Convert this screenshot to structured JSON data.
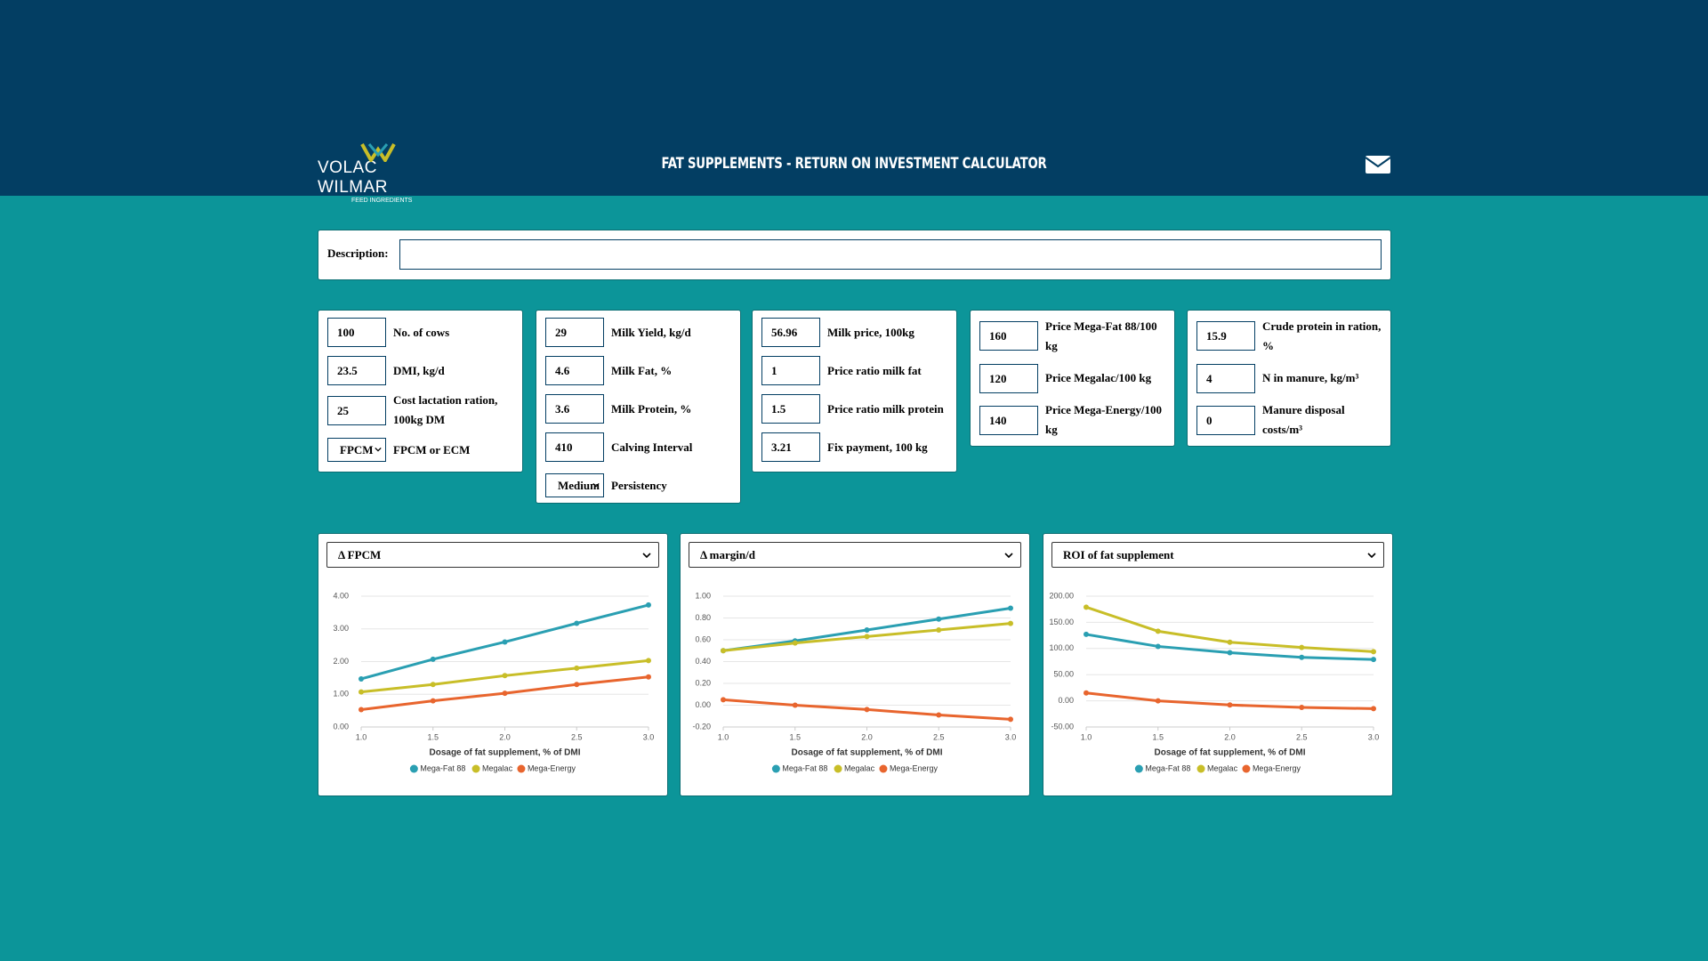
{
  "header": {
    "logo": "VOLAC WILMAR",
    "logo_sub": "FEED INGREDIENTS",
    "title": "FAT SUPPLEMENTS - RETURN ON INVESTMENT CALCULATOR"
  },
  "description": {
    "label": "Description:"
  },
  "panels": [
    {
      "fields": [
        {
          "value": "100",
          "label": "No. of cows"
        },
        {
          "value": "23.5",
          "label": "DMI, kg/d"
        },
        {
          "value": "25",
          "label": "Cost lactation ration, 100kg DM"
        },
        {
          "value": "FPCM",
          "label": "FPCM or ECM",
          "type": "select"
        }
      ]
    },
    {
      "fields": [
        {
          "value": "29",
          "label": "Milk Yield, kg/d"
        },
        {
          "value": "4.6",
          "label": "Milk Fat, %"
        },
        {
          "value": "3.6",
          "label": "Milk Protein, %"
        },
        {
          "value": "410",
          "label": "Calving Interval"
        },
        {
          "value": "Medium",
          "label": "Persistency",
          "type": "select"
        }
      ]
    },
    {
      "fields": [
        {
          "value": "56.96",
          "label": "Milk price, 100kg"
        },
        {
          "value": "1",
          "label": "Price ratio milk fat"
        },
        {
          "value": "1.5",
          "label": "Price ratio milk protein"
        },
        {
          "value": "3.21",
          "label": "Fix payment, 100 kg"
        }
      ]
    },
    {
      "fields": [
        {
          "value": "160",
          "label": "Price Mega-Fat 88/100 kg"
        },
        {
          "value": "120",
          "label": "Price Megalac/100 kg"
        },
        {
          "value": "140",
          "label": "Price Mega-Energy/100 kg"
        }
      ]
    },
    {
      "fields": [
        {
          "value": "15.9",
          "label": "Crude protein in ration, %"
        },
        {
          "value": "4",
          "label": "N in manure, kg/m³"
        },
        {
          "value": "0",
          "label": "Manure disposal costs/m³"
        }
      ]
    }
  ],
  "charts": [
    {
      "type": "line",
      "selector": "Δ FPCM",
      "xlabel": "Dosage of fat supplement, % of DMI",
      "grid": true,
      "x": [
        1,
        1.5,
        2,
        2.5,
        3
      ],
      "xlim": [
        1,
        3
      ],
      "xticks": [
        {
          "value": 1,
          "label": "1.0"
        },
        {
          "value": 1.5,
          "label": "1.5"
        },
        {
          "value": 2,
          "label": "2.0"
        },
        {
          "value": 2.5,
          "label": "2.5"
        },
        {
          "value": 3,
          "label": "3.0"
        }
      ],
      "ylim": [
        0,
        4
      ],
      "yticks": [
        {
          "value": 0,
          "label": "0.00"
        },
        {
          "value": 1,
          "label": "1.00"
        },
        {
          "value": 2,
          "label": "2.00"
        },
        {
          "value": 3,
          "label": "3.00"
        },
        {
          "value": 4,
          "label": "4.00"
        }
      ],
      "series": [
        {
          "name": "Mega-Fat 88",
          "color": "#2a9fb2",
          "values": [
            1.47,
            2.07,
            2.6,
            3.17,
            3.73
          ]
        },
        {
          "name": "Megalac",
          "color": "#c8be28",
          "values": [
            1.07,
            1.3,
            1.57,
            1.8,
            2.03
          ]
        },
        {
          "name": "Mega-Energy",
          "color": "#e8652e",
          "values": [
            0.53,
            0.8,
            1.03,
            1.3,
            1.53
          ]
        }
      ]
    },
    {
      "type": "line",
      "selector": "Δ margin/d",
      "xlabel": "Dosage of fat supplement, % of DMI",
      "grid": true,
      "x": [
        1,
        1.5,
        2,
        2.5,
        3
      ],
      "xlim": [
        1,
        3
      ],
      "xticks": [
        {
          "value": 1,
          "label": "1.0"
        },
        {
          "value": 1.5,
          "label": "1.5"
        },
        {
          "value": 2,
          "label": "2.0"
        },
        {
          "value": 2.5,
          "label": "2.5"
        },
        {
          "value": 3,
          "label": "3.0"
        }
      ],
      "ylim": [
        -0.2,
        1
      ],
      "yticks": [
        {
          "value": -0.2,
          "label": "-0.20"
        },
        {
          "value": 0,
          "label": "0.00"
        },
        {
          "value": 0.2,
          "label": "0.20"
        },
        {
          "value": 0.4,
          "label": "0.40"
        },
        {
          "value": 0.6,
          "label": "0.60"
        },
        {
          "value": 0.8,
          "label": "0.80"
        },
        {
          "value": 1,
          "label": "1.00"
        }
      ],
      "series": [
        {
          "name": "Mega-Fat 88",
          "color": "#2a9fb2",
          "values": [
            0.5,
            0.59,
            0.69,
            0.79,
            0.89
          ]
        },
        {
          "name": "Megalac",
          "color": "#c8be28",
          "values": [
            0.5,
            0.57,
            0.63,
            0.69,
            0.75
          ]
        },
        {
          "name": "Mega-Energy",
          "color": "#e8652e",
          "values": [
            0.05,
            0.0,
            -0.04,
            -0.09,
            -0.13
          ]
        }
      ]
    },
    {
      "type": "line",
      "selector": "ROI of fat supplement",
      "xlabel": "Dosage of fat supplement, % of DMI",
      "grid": true,
      "x": [
        1,
        1.5,
        2,
        2.5,
        3
      ],
      "xlim": [
        1,
        3
      ],
      "xticks": [
        {
          "value": 1,
          "label": "1.0"
        },
        {
          "value": 1.5,
          "label": "1.5"
        },
        {
          "value": 2,
          "label": "2.0"
        },
        {
          "value": 2.5,
          "label": "2.5"
        },
        {
          "value": 3,
          "label": "3.0"
        }
      ],
      "ylim": [
        -50,
        200
      ],
      "yticks": [
        {
          "value": -50,
          "label": "-50.00"
        },
        {
          "value": 0,
          "label": "0.00"
        },
        {
          "value": 50,
          "label": "50.00"
        },
        {
          "value": 100,
          "label": "100.00"
        },
        {
          "value": 150,
          "label": "150.00"
        },
        {
          "value": 200,
          "label": "200.00"
        }
      ],
      "series": [
        {
          "name": "Mega-Fat 88",
          "color": "#2a9fb2",
          "values": [
            127,
            104,
            92,
            83,
            79
          ]
        },
        {
          "name": "Megalac",
          "color": "#c8be28",
          "values": [
            179,
            133,
            112,
            102,
            94
          ]
        },
        {
          "name": "Mega-Energy",
          "color": "#e8652e",
          "values": [
            15,
            0,
            -8,
            -12.5,
            -15
          ]
        }
      ]
    }
  ]
}
